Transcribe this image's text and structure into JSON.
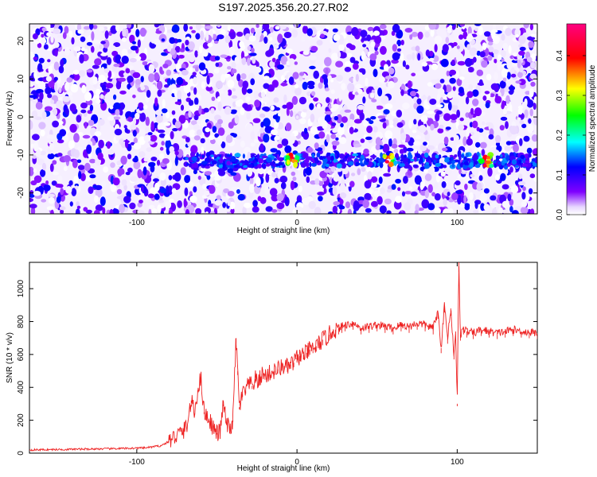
{
  "page": {
    "title": "S197.2025.356.20.27.R02"
  },
  "chart_data": [
    {
      "type": "heatmap",
      "title": "S197.2025.356.20.27.R02",
      "xlabel": "Height of straight line (km)",
      "ylabel": "Frequency (Hz)",
      "xlim": [
        -167,
        150
      ],
      "ylim": [
        -25.5,
        24.5
      ],
      "xticks": [
        -100,
        0,
        100
      ],
      "yticks": [
        -20,
        -10,
        0,
        10,
        20
      ],
      "colorbar": {
        "label": "Normalized spectral amplitude",
        "range": [
          0.0,
          0.48
        ],
        "ticks": [
          0.0,
          0.1,
          0.2,
          0.3,
          0.4
        ],
        "tick_labels": [
          "0.0",
          "0.1",
          "0.2",
          "0.3",
          "0.4"
        ],
        "colors": [
          "#ffffff",
          "#7f00ff",
          "#0000ff",
          "#00ffff",
          "#00ff00",
          "#ffff00",
          "#ff0000",
          "#ff0080"
        ]
      },
      "features": [
        {
          "label": "",
          "freq_hz": -11.5,
          "x_km_range": [
            -70,
            150
          ],
          "peak_x_km": [
            -3,
            57,
            118
          ],
          "peak_amplitude": 0.45
        }
      ],
      "background_amplitude": 0.08,
      "grid": false
    },
    {
      "type": "line",
      "xlabel": "Height of straight line (km)",
      "ylabel": "SNR (10 * v/v)",
      "xlim": [
        -167,
        150
      ],
      "ylim": [
        0,
        1160
      ],
      "xticks": [
        -100,
        0,
        100
      ],
      "yticks": [
        0,
        200,
        400,
        600,
        800,
        1000
      ],
      "color": "#ee2222",
      "grid": false,
      "series": [
        {
          "name": "",
          "x": [
            -167,
            -150,
            -130,
            -110,
            -95,
            -85,
            -80,
            -75,
            -70,
            -68,
            -66,
            -64,
            -62,
            -60,
            -58,
            -55,
            -52,
            -50,
            -48,
            -46,
            -44,
            -42,
            -40,
            -38,
            -37,
            -36,
            -34,
            -32,
            -30,
            -28,
            -26,
            -24,
            -22,
            -20,
            -18,
            -16,
            -14,
            -12,
            -10,
            -8,
            -6,
            -4,
            -2,
            0,
            2,
            4,
            6,
            8,
            10,
            12,
            14,
            16,
            18,
            20,
            22,
            24,
            26,
            28,
            30,
            35,
            40,
            45,
            50,
            55,
            60,
            65,
            70,
            75,
            80,
            85,
            88,
            90,
            92,
            94,
            96,
            98,
            99,
            100,
            101,
            102,
            104,
            106,
            110,
            115,
            120,
            125,
            130,
            135,
            140,
            145,
            150
          ],
          "y": [
            20,
            22,
            25,
            28,
            32,
            45,
            70,
            110,
            140,
            200,
            320,
            240,
            380,
            460,
            250,
            210,
            150,
            120,
            130,
            300,
            180,
            140,
            200,
            700,
            500,
            280,
            360,
            380,
            420,
            410,
            450,
            430,
            480,
            470,
            480,
            490,
            500,
            510,
            520,
            530,
            520,
            540,
            550,
            580,
            590,
            600,
            610,
            630,
            640,
            650,
            670,
            690,
            700,
            720,
            740,
            750,
            760,
            770,
            780,
            790,
            760,
            770,
            780,
            770,
            760,
            780,
            770,
            790,
            780,
            760,
            860,
            640,
            900,
            700,
            880,
            600,
            740,
            300,
            1160,
            720,
            760,
            740,
            730,
            750,
            740,
            730,
            740,
            750,
            740,
            735,
            730
          ]
        }
      ]
    }
  ]
}
